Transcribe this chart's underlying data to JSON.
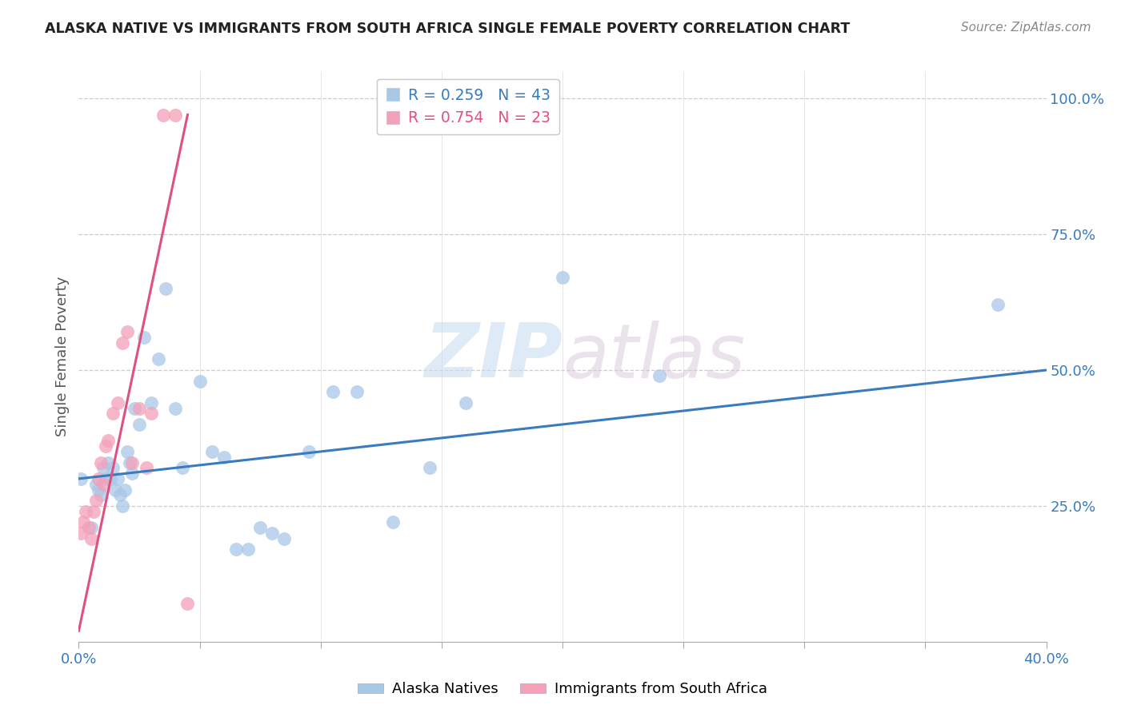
{
  "title": "ALASKA NATIVE VS IMMIGRANTS FROM SOUTH AFRICA SINGLE FEMALE POVERTY CORRELATION CHART",
  "source": "Source: ZipAtlas.com",
  "ylabel": "Single Female Poverty",
  "ytick_labels": [
    "100.0%",
    "75.0%",
    "50.0%",
    "25.0%"
  ],
  "ytick_values": [
    1.0,
    0.75,
    0.5,
    0.25
  ],
  "xlim": [
    0.0,
    0.4
  ],
  "ylim": [
    0.0,
    1.05
  ],
  "watermark_zip": "ZIP",
  "watermark_atlas": "atlas",
  "legend_r1": "R = 0.259",
  "legend_n1": "N = 43",
  "legend_r2": "R = 0.754",
  "legend_n2": "N = 23",
  "color_blue": "#a8c8e8",
  "color_pink": "#f4a0b8",
  "line_color_blue": "#3a7abf",
  "line_color_pink": "#e05080",
  "alaska_natives_x": [
    0.001,
    0.005,
    0.007,
    0.008,
    0.009,
    0.01,
    0.011,
    0.012,
    0.013,
    0.014,
    0.015,
    0.016,
    0.017,
    0.018,
    0.019,
    0.02,
    0.021,
    0.022,
    0.023,
    0.025,
    0.027,
    0.03,
    0.033,
    0.036,
    0.04,
    0.043,
    0.05,
    0.055,
    0.06,
    0.065,
    0.07,
    0.075,
    0.08,
    0.085,
    0.095,
    0.105,
    0.115,
    0.13,
    0.145,
    0.16,
    0.2,
    0.24,
    0.38
  ],
  "alaska_natives_y": [
    0.3,
    0.21,
    0.29,
    0.28,
    0.27,
    0.32,
    0.3,
    0.33,
    0.3,
    0.32,
    0.28,
    0.3,
    0.27,
    0.25,
    0.28,
    0.35,
    0.33,
    0.31,
    0.43,
    0.4,
    0.56,
    0.44,
    0.52,
    0.65,
    0.43,
    0.32,
    0.48,
    0.35,
    0.34,
    0.17,
    0.17,
    0.21,
    0.2,
    0.19,
    0.35,
    0.46,
    0.46,
    0.22,
    0.32,
    0.44,
    0.67,
    0.49,
    0.62
  ],
  "south_africa_x": [
    0.001,
    0.002,
    0.003,
    0.004,
    0.005,
    0.006,
    0.007,
    0.008,
    0.009,
    0.01,
    0.011,
    0.012,
    0.014,
    0.016,
    0.018,
    0.02,
    0.022,
    0.025,
    0.028,
    0.03,
    0.035,
    0.04,
    0.045
  ],
  "south_africa_y": [
    0.2,
    0.22,
    0.24,
    0.21,
    0.19,
    0.24,
    0.26,
    0.3,
    0.33,
    0.29,
    0.36,
    0.37,
    0.42,
    0.44,
    0.55,
    0.57,
    0.33,
    0.43,
    0.32,
    0.42,
    0.97,
    0.97,
    0.07
  ],
  "alaska_line_x0": 0.0,
  "alaska_line_x1": 0.4,
  "alaska_line_y0": 0.3,
  "alaska_line_y1": 0.5,
  "sa_line_x0": 0.0,
  "sa_line_x1": 0.045,
  "sa_line_y0": 0.02,
  "sa_line_y1": 0.97
}
